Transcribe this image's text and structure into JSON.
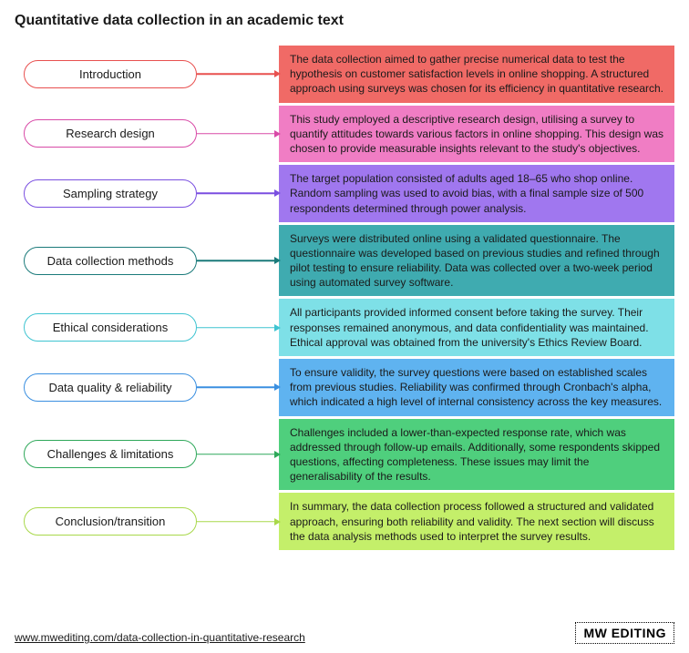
{
  "title": "Quantitative data collection in an academic text",
  "rows": [
    {
      "label": "Introduction",
      "border_color": "#e8504f",
      "body_bg": "#f06a66",
      "text": "The data collection aimed to gather precise numerical data to test the hypothesis on customer satisfaction levels in online shopping. A structured approach using surveys was chosen for its efficiency in quantitative research."
    },
    {
      "label": "Research design",
      "border_color": "#d84aa7",
      "body_bg": "#f07dc4",
      "text": "This study employed a descriptive research design, utilising a survey to quantify attitudes towards various factors in online shopping. This design was chosen to provide measurable insights relevant to the study's objectives."
    },
    {
      "label": "Sampling strategy",
      "border_color": "#7a4fe0",
      "body_bg": "#a077ef",
      "text": "The target population consisted of adults aged 18–65 who shop online. Random sampling was used to avoid bias, with a final sample size of 500 respondents determined through power analysis."
    },
    {
      "label": "Data collection methods",
      "border_color": "#1a7a7a",
      "body_bg": "#3fabb0",
      "text": "Surveys were distributed online using a validated questionnaire. The questionnaire was developed based on previous studies and refined through pilot testing to ensure reliability. Data was collected over a two-week period using automated survey software."
    },
    {
      "label": "Ethical considerations",
      "border_color": "#3fc4d1",
      "body_bg": "#7ee0e7",
      "text": "All participants provided informed consent before taking the survey. Their responses remained anonymous, and data confidentiality was maintained. Ethical approval was obtained from the university's Ethics Review Board."
    },
    {
      "label": "Data quality & reliability",
      "border_color": "#3a8fe0",
      "body_bg": "#5fb3f0",
      "text": "To ensure validity, the survey questions were based on established scales from previous studies. Reliability was confirmed through Cronbach's alpha, which indicated a high level of internal consistency across the key measures."
    },
    {
      "label": "Challenges & limitations",
      "border_color": "#2fa85a",
      "body_bg": "#4fcf7d",
      "text": "Challenges included a lower-than-expected response rate, which was addressed through follow-up emails. Additionally, some respondents skipped questions, affecting completeness. These issues may limit the generalisability of the results."
    },
    {
      "label": "Conclusion/transition",
      "border_color": "#a8d84a",
      "body_bg": "#c4ef6a",
      "text": "In summary, the data collection process followed a structured and validated approach, ensuring both reliability and validity. The next section will discuss the data analysis methods used to interpret the survey results."
    }
  ],
  "footer": {
    "url": "www.mwediting.com/data-collection-in-quantitative-research",
    "logo_text": "MW EDITING"
  }
}
